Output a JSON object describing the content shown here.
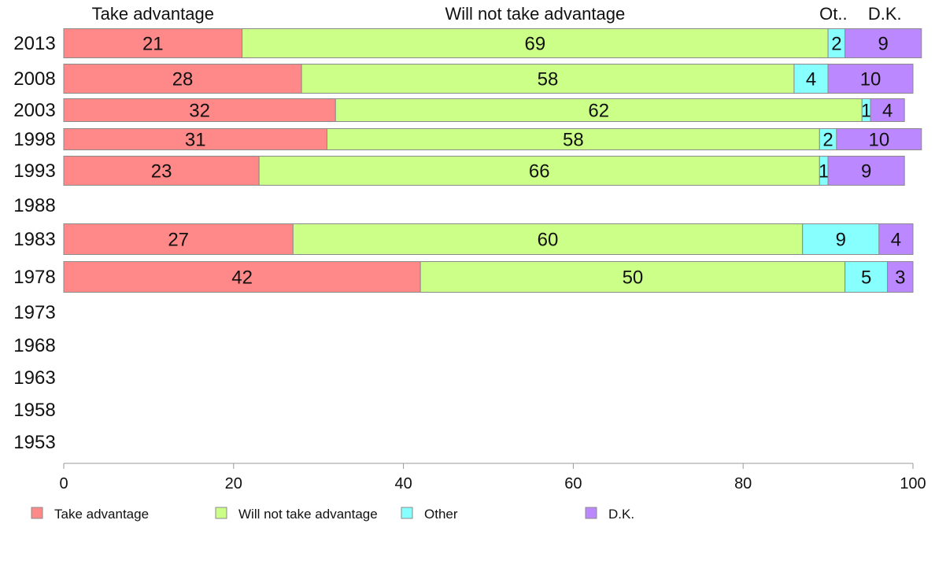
{
  "chart_data": {
    "type": "bar",
    "orientation": "horizontal",
    "stacked": true,
    "categories": [
      "2013",
      "2008",
      "2003",
      "1998",
      "1993",
      "1988",
      "1983",
      "1978",
      "1973",
      "1968",
      "1963",
      "1958",
      "1953"
    ],
    "series": [
      {
        "name": "Take advantage",
        "color": "#ff8888",
        "values": [
          21,
          28,
          32,
          31,
          23,
          null,
          27,
          42,
          null,
          null,
          null,
          null,
          null
        ]
      },
      {
        "name": "Will not take advantage",
        "color": "#ccff88",
        "values": [
          69,
          58,
          62,
          58,
          66,
          null,
          60,
          50,
          null,
          null,
          null,
          null,
          null
        ]
      },
      {
        "name": "Other",
        "color": "#88ffff",
        "values": [
          2,
          4,
          1,
          2,
          1,
          null,
          9,
          5,
          null,
          null,
          null,
          null,
          null
        ]
      },
      {
        "name": "D.K.",
        "color": "#bb88ff",
        "values": [
          9,
          10,
          4,
          10,
          9,
          null,
          4,
          3,
          null,
          null,
          null,
          null,
          null
        ]
      }
    ],
    "column_headers": [
      "Take advantage",
      "Will not take advantage",
      "Ot..",
      "D.K."
    ],
    "x_ticks": [
      "0",
      "20",
      "40",
      "60",
      "80",
      "100"
    ],
    "xlim": [
      0,
      100
    ],
    "xlabel": "",
    "ylabel": "",
    "title": "",
    "grid": false,
    "legend_position": "bottom"
  }
}
